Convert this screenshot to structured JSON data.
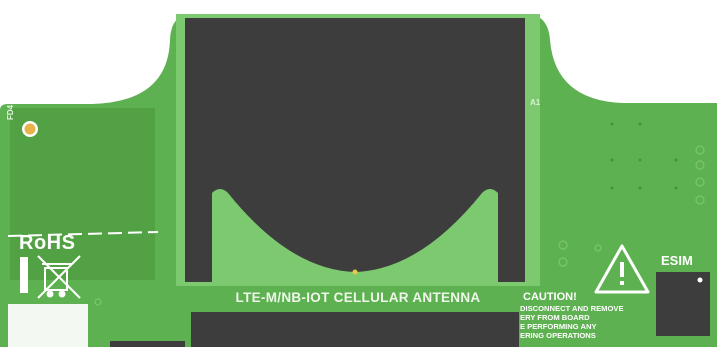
{
  "board": {
    "antenna_label": "LTE-M/NB-IOT CELLULAR ANTENNA",
    "antenna_ref": "A1",
    "fiducial_ref": "FD4",
    "rohs_label": "RoHS",
    "esim_label": "ESIM",
    "caution": {
      "title": "CAUTION!",
      "lines": [
        "DISCONNECT AND REMOVE",
        "ERY FROM BOARD",
        "E PERFORMING ANY",
        "ERING OPERATIONS"
      ]
    },
    "icons": [
      "warning-triangle-icon",
      "weee-crossed-bin-icon",
      "fiducial-marker-icon"
    ],
    "colors": {
      "pcb_green": "#5db150",
      "pcb_light": "#7cc96f",
      "pad_dark": "#3d3d3d",
      "silkscreen": "#ffffff",
      "fiducial_gold": "#e8b24a"
    }
  }
}
